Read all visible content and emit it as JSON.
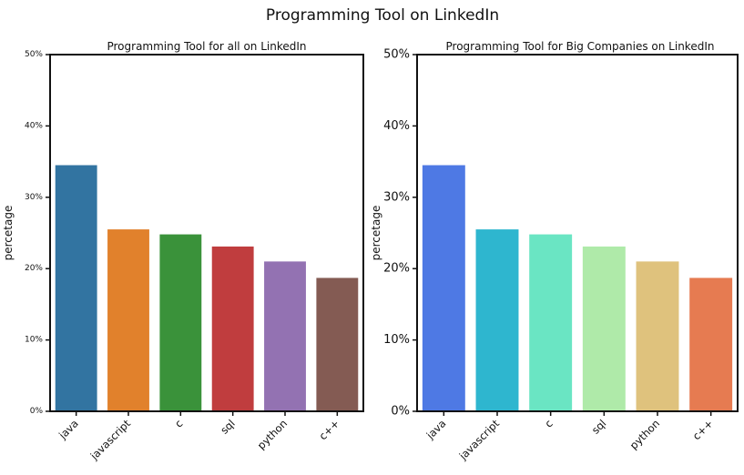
{
  "figure": {
    "title": "Programming Tool on LinkedIn"
  },
  "chart_data": [
    {
      "type": "bar",
      "title": "Programming Tool for all on LinkedIn",
      "xlabel": "",
      "ylabel": "percetage",
      "categories": [
        "java",
        "javascript",
        "c",
        "sql",
        "python",
        "c++"
      ],
      "values": [
        34.5,
        25.5,
        24.8,
        23.1,
        21.0,
        18.7
      ],
      "ylim": [
        0,
        50
      ],
      "yticks": [
        0,
        10,
        20,
        30,
        40,
        50
      ],
      "ytick_labels": [
        "0%",
        "10%",
        "20%",
        "30%",
        "40%",
        "50%"
      ],
      "colors": [
        "#3274a1",
        "#e1812c",
        "#3a923a",
        "#c03d3e",
        "#9372b2",
        "#845b53"
      ],
      "grid": false,
      "legend": "none"
    },
    {
      "type": "bar",
      "title": "Programming Tool for Big Companies on LinkedIn",
      "xlabel": "",
      "ylabel": "percetage",
      "categories": [
        "java",
        "javascript",
        "c",
        "sql",
        "python",
        "c++"
      ],
      "values": [
        34.5,
        25.5,
        24.8,
        23.1,
        21.0,
        18.7
      ],
      "ylim": [
        0,
        50
      ],
      "yticks": [
        0,
        10,
        20,
        30,
        40,
        50
      ],
      "ytick_labels": [
        "0%",
        "10%",
        "20%",
        "30%",
        "40%",
        "50%"
      ],
      "colors": [
        "#4e79e4",
        "#2eb6cf",
        "#6ae5c3",
        "#afeaa9",
        "#dfc27d",
        "#e67b51"
      ],
      "grid": false,
      "legend": "none"
    }
  ]
}
